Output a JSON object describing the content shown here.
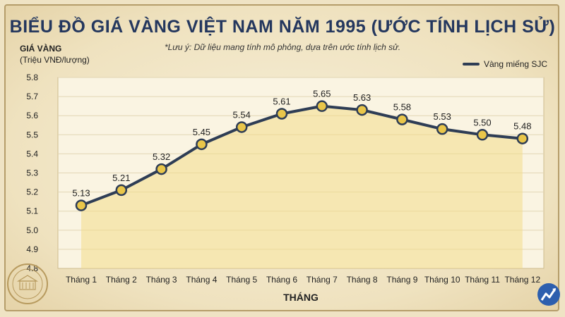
{
  "header": {
    "title": "BIỂU ĐỒ GIÁ VÀNG VIỆT NAM NĂM 1995 (ƯỚC TÍNH LỊCH SỬ)",
    "note": "*Lưu ý: Dữ liệu mang tính mô phỏng, dựa trên ước tính lịch sử."
  },
  "legend": {
    "label": "Vàng miếng SJC"
  },
  "colors": {
    "line": "#2e3d55",
    "fill": "#f2dd8a",
    "marker": "#e9c64a",
    "title": "#24375e"
  },
  "icons": [
    "seal-emblem",
    "chart-logo-icon"
  ],
  "chart_data": {
    "type": "line",
    "title": "BIỂU ĐỒ GIÁ VÀNG VIỆT NAM NĂM 1995 (ƯỚC TÍNH LỊCH SỬ)",
    "ylabel": "GIÁ VÀNG",
    "ylabel_unit": "(Triệu VNĐ/lượng)",
    "xlabel": "THÁNG",
    "categories": [
      "Tháng 1",
      "Tháng 2",
      "Tháng 3",
      "Tháng 4",
      "Tháng 5",
      "Tháng 6",
      "Tháng 7",
      "Tháng 8",
      "Tháng 9",
      "Tháng 10",
      "Tháng 11",
      "Tháng 12"
    ],
    "series": [
      {
        "name": "Vàng miếng SJC",
        "values": [
          5.13,
          5.21,
          5.32,
          5.45,
          5.54,
          5.61,
          5.65,
          5.63,
          5.58,
          5.53,
          5.5,
          5.48
        ],
        "labels": [
          "5.13",
          "5.21",
          "5.32",
          "5.45",
          "5.54",
          "5.61",
          "5.65",
          "5.63",
          "5.58",
          "5.53",
          "5.50",
          "5.48"
        ]
      }
    ],
    "ylim": [
      4.8,
      5.8
    ],
    "yticks": [
      "4.8",
      "4.9",
      "5.0",
      "5.1",
      "5.2",
      "5.3",
      "5.4",
      "5.5",
      "5.6",
      "5.7",
      "5.8"
    ],
    "grid": true,
    "legend_position": "top-right"
  }
}
